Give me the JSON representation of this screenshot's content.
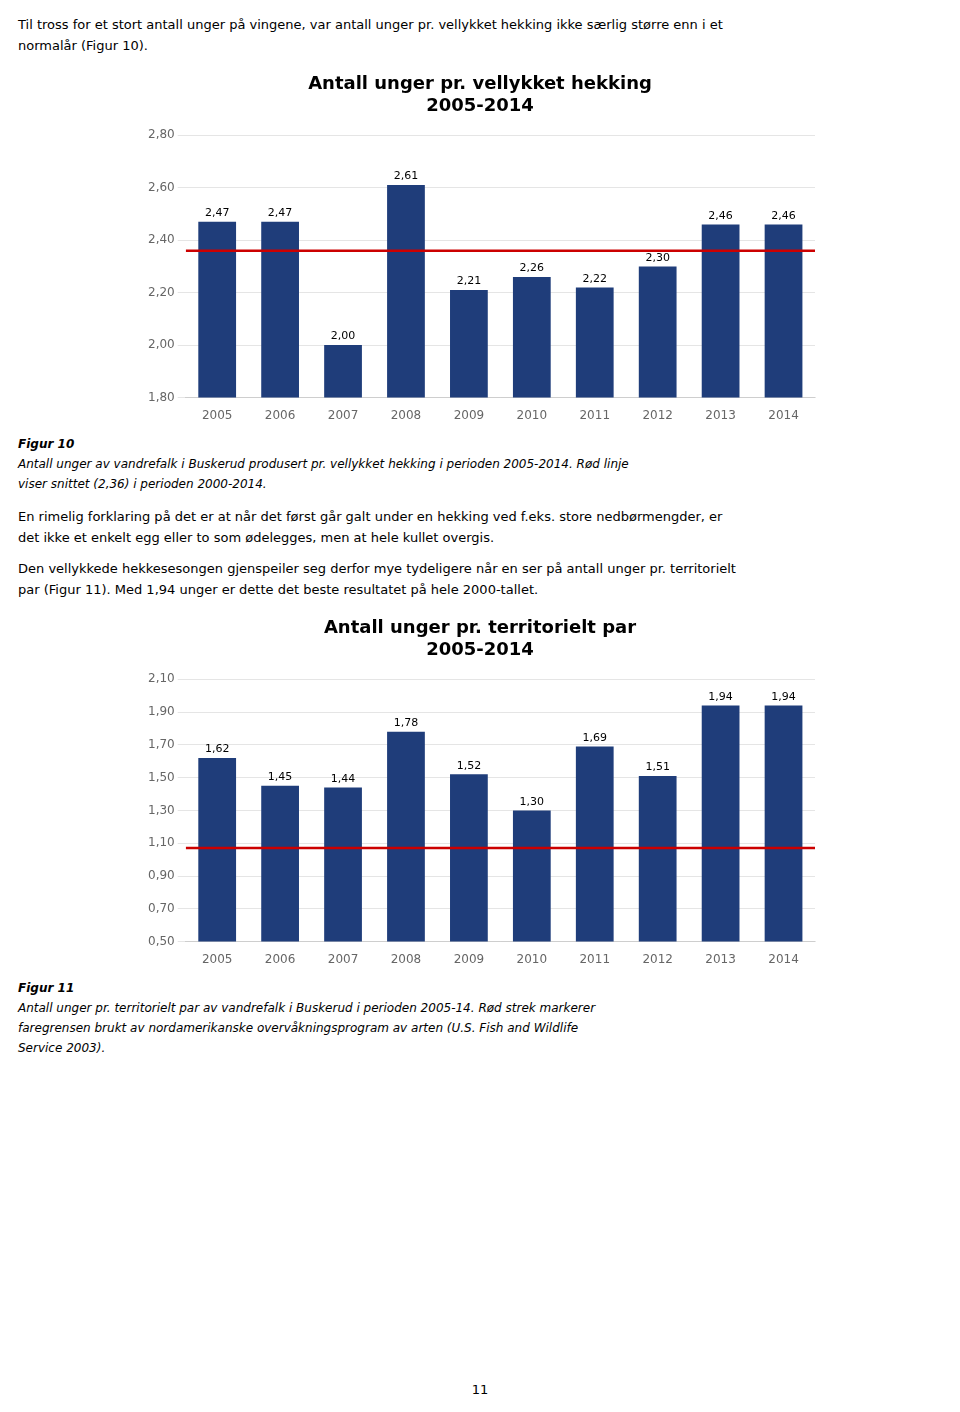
{
  "chart_data": [
    {
      "type": "bar",
      "text_before": [
        [
          "Til tross for et stort antall unger på vingene, var antall unger pr. vellykket hekking ikke særlig større enn i et",
          "normalår (Figur 10)."
        ]
      ],
      "title": "Antall unger pr. vellykket hekking",
      "subtitle": "2005-2014",
      "categories": [
        "2005",
        "2006",
        "2007",
        "2008",
        "2009",
        "2010",
        "2011",
        "2012",
        "2013",
        "2014"
      ],
      "values": [
        2.47,
        2.47,
        2.0,
        2.61,
        2.21,
        2.26,
        2.22,
        2.3,
        2.46,
        2.46
      ],
      "value_labels": [
        "2,47",
        "2,47",
        "2,00",
        "2,61",
        "2,21",
        "2,26",
        "2,22",
        "2,30",
        "2,46",
        "2,46"
      ],
      "data_labels": true,
      "color": "#1F3D7A",
      "ref_line": {
        "value": 2.36,
        "color": "#CC0000"
      },
      "ylim": [
        1.8,
        2.8
      ],
      "yticks": [
        {
          "value": 1.8,
          "label": "1,80"
        },
        {
          "value": 2.0,
          "label": "2,00"
        },
        {
          "value": 2.2,
          "label": "2,20"
        },
        {
          "value": 2.4,
          "label": "2,40"
        },
        {
          "value": 2.6,
          "label": "2,60"
        },
        {
          "value": 2.8,
          "label": "2,80"
        }
      ],
      "grid": true,
      "annotations": [
        "Figur 10",
        "Antall unger av vandrefalk i Buskerud produsert pr. vellykket hekking i perioden 2005-2014. Rød linje",
        "viser snittet (2,36) i perioden 2000-2014."
      ]
    },
    {
      "type": "bar",
      "text_before": [
        [
          "En rimelig forklaring på det er at når det først går galt under en hekking ved f.eks. store nedbørmengder, er",
          "det ikke et enkelt egg eller to som ødelegges, men at hele kullet overgis."
        ],
        [
          "Den vellykkede hekkesesongen gjenspeiler seg derfor mye tydeligere når en ser på antall unger pr. territorielt",
          "par (Figur 11). Med 1,94 unger er dette det beste resultatet på hele 2000-tallet."
        ]
      ],
      "title": "Antall unger pr. territorielt par",
      "subtitle": "2005-2014",
      "categories": [
        "2005",
        "2006",
        "2007",
        "2008",
        "2009",
        "2010",
        "2011",
        "2012",
        "2013",
        "2014"
      ],
      "values": [
        1.62,
        1.45,
        1.44,
        1.78,
        1.52,
        1.3,
        1.69,
        1.51,
        1.94,
        1.94
      ],
      "value_labels": [
        "1,62",
        "1,45",
        "1,44",
        "1,78",
        "1,52",
        "1,30",
        "1,69",
        "1,51",
        "1,94",
        "1,94"
      ],
      "data_labels": true,
      "color": "#1F3D7A",
      "ref_line": {
        "value": 1.07,
        "color": "#CC0000"
      },
      "ylim": [
        0.5,
        2.1
      ],
      "yticks": [
        {
          "value": 0.5,
          "label": "0,50"
        },
        {
          "value": 0.7,
          "label": "0,70"
        },
        {
          "value": 0.9,
          "label": "0,90"
        },
        {
          "value": 1.1,
          "label": "1,10"
        },
        {
          "value": 1.3,
          "label": "1,30"
        },
        {
          "value": 1.5,
          "label": "1,50"
        },
        {
          "value": 1.7,
          "label": "1,70"
        },
        {
          "value": 1.9,
          "label": "1,90"
        },
        {
          "value": 2.1,
          "label": "2,10"
        }
      ],
      "grid": true,
      "annotations": [
        "Figur 11",
        "Antall unger pr. territorielt par av vandrefalk i Buskerud i perioden 2005-14.  Rød strek markerer",
        "faregrensen brukt av nordamerikanske overvåkningsprogram av arten (U.S. Fish and Wildlife",
        "Service 2003)."
      ]
    }
  ],
  "page_number": "11"
}
